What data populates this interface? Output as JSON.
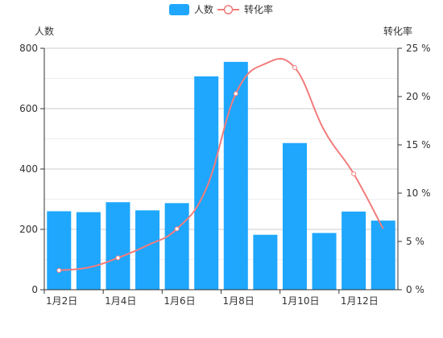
{
  "chart_data": {
    "type": "bar",
    "categories": [
      "1月2日",
      "1月3日",
      "1月4日",
      "1月5日",
      "1月6日",
      "1月7日",
      "1月8日",
      "1月9日",
      "1月10日",
      "1月11日",
      "1月12日",
      "1月13日"
    ],
    "x_tick_labels_shown": [
      "1月2日",
      "1月4日",
      "1月6日",
      "1月8日",
      "1月10日",
      "1月12日"
    ],
    "series": [
      {
        "name": "人数",
        "type": "bar",
        "axis": "left",
        "color": "#1ea7fd",
        "values": [
          260,
          257,
          290,
          263,
          287,
          707,
          755,
          182,
          486,
          188,
          259,
          229
        ]
      },
      {
        "name": "转化率",
        "type": "line",
        "axis": "right",
        "color": "#f27c7c",
        "smooth": true,
        "markers_shown_at": [
          "1月2日",
          "1月4日",
          "1月6日",
          "1月8日",
          "1月10日",
          "1月12日"
        ],
        "values": [
          2.0,
          2.3,
          3.3,
          4.6,
          6.3,
          10.5,
          20.3,
          23.4,
          23.0,
          16.5,
          12.0,
          6.3
        ]
      }
    ],
    "left_axis": {
      "label": "人数",
      "min": 0,
      "max": 800,
      "ticks": [
        0,
        200,
        400,
        600,
        800
      ]
    },
    "right_axis": {
      "label": "转化率",
      "min": 0,
      "max": 25,
      "ticks": [
        0,
        5,
        10,
        15,
        20,
        25
      ],
      "tick_labels": [
        "0 %",
        "5 %",
        "10 %",
        "15 %",
        "20 %",
        "25 %"
      ]
    },
    "grid": true,
    "legend_placement": "top-center"
  }
}
